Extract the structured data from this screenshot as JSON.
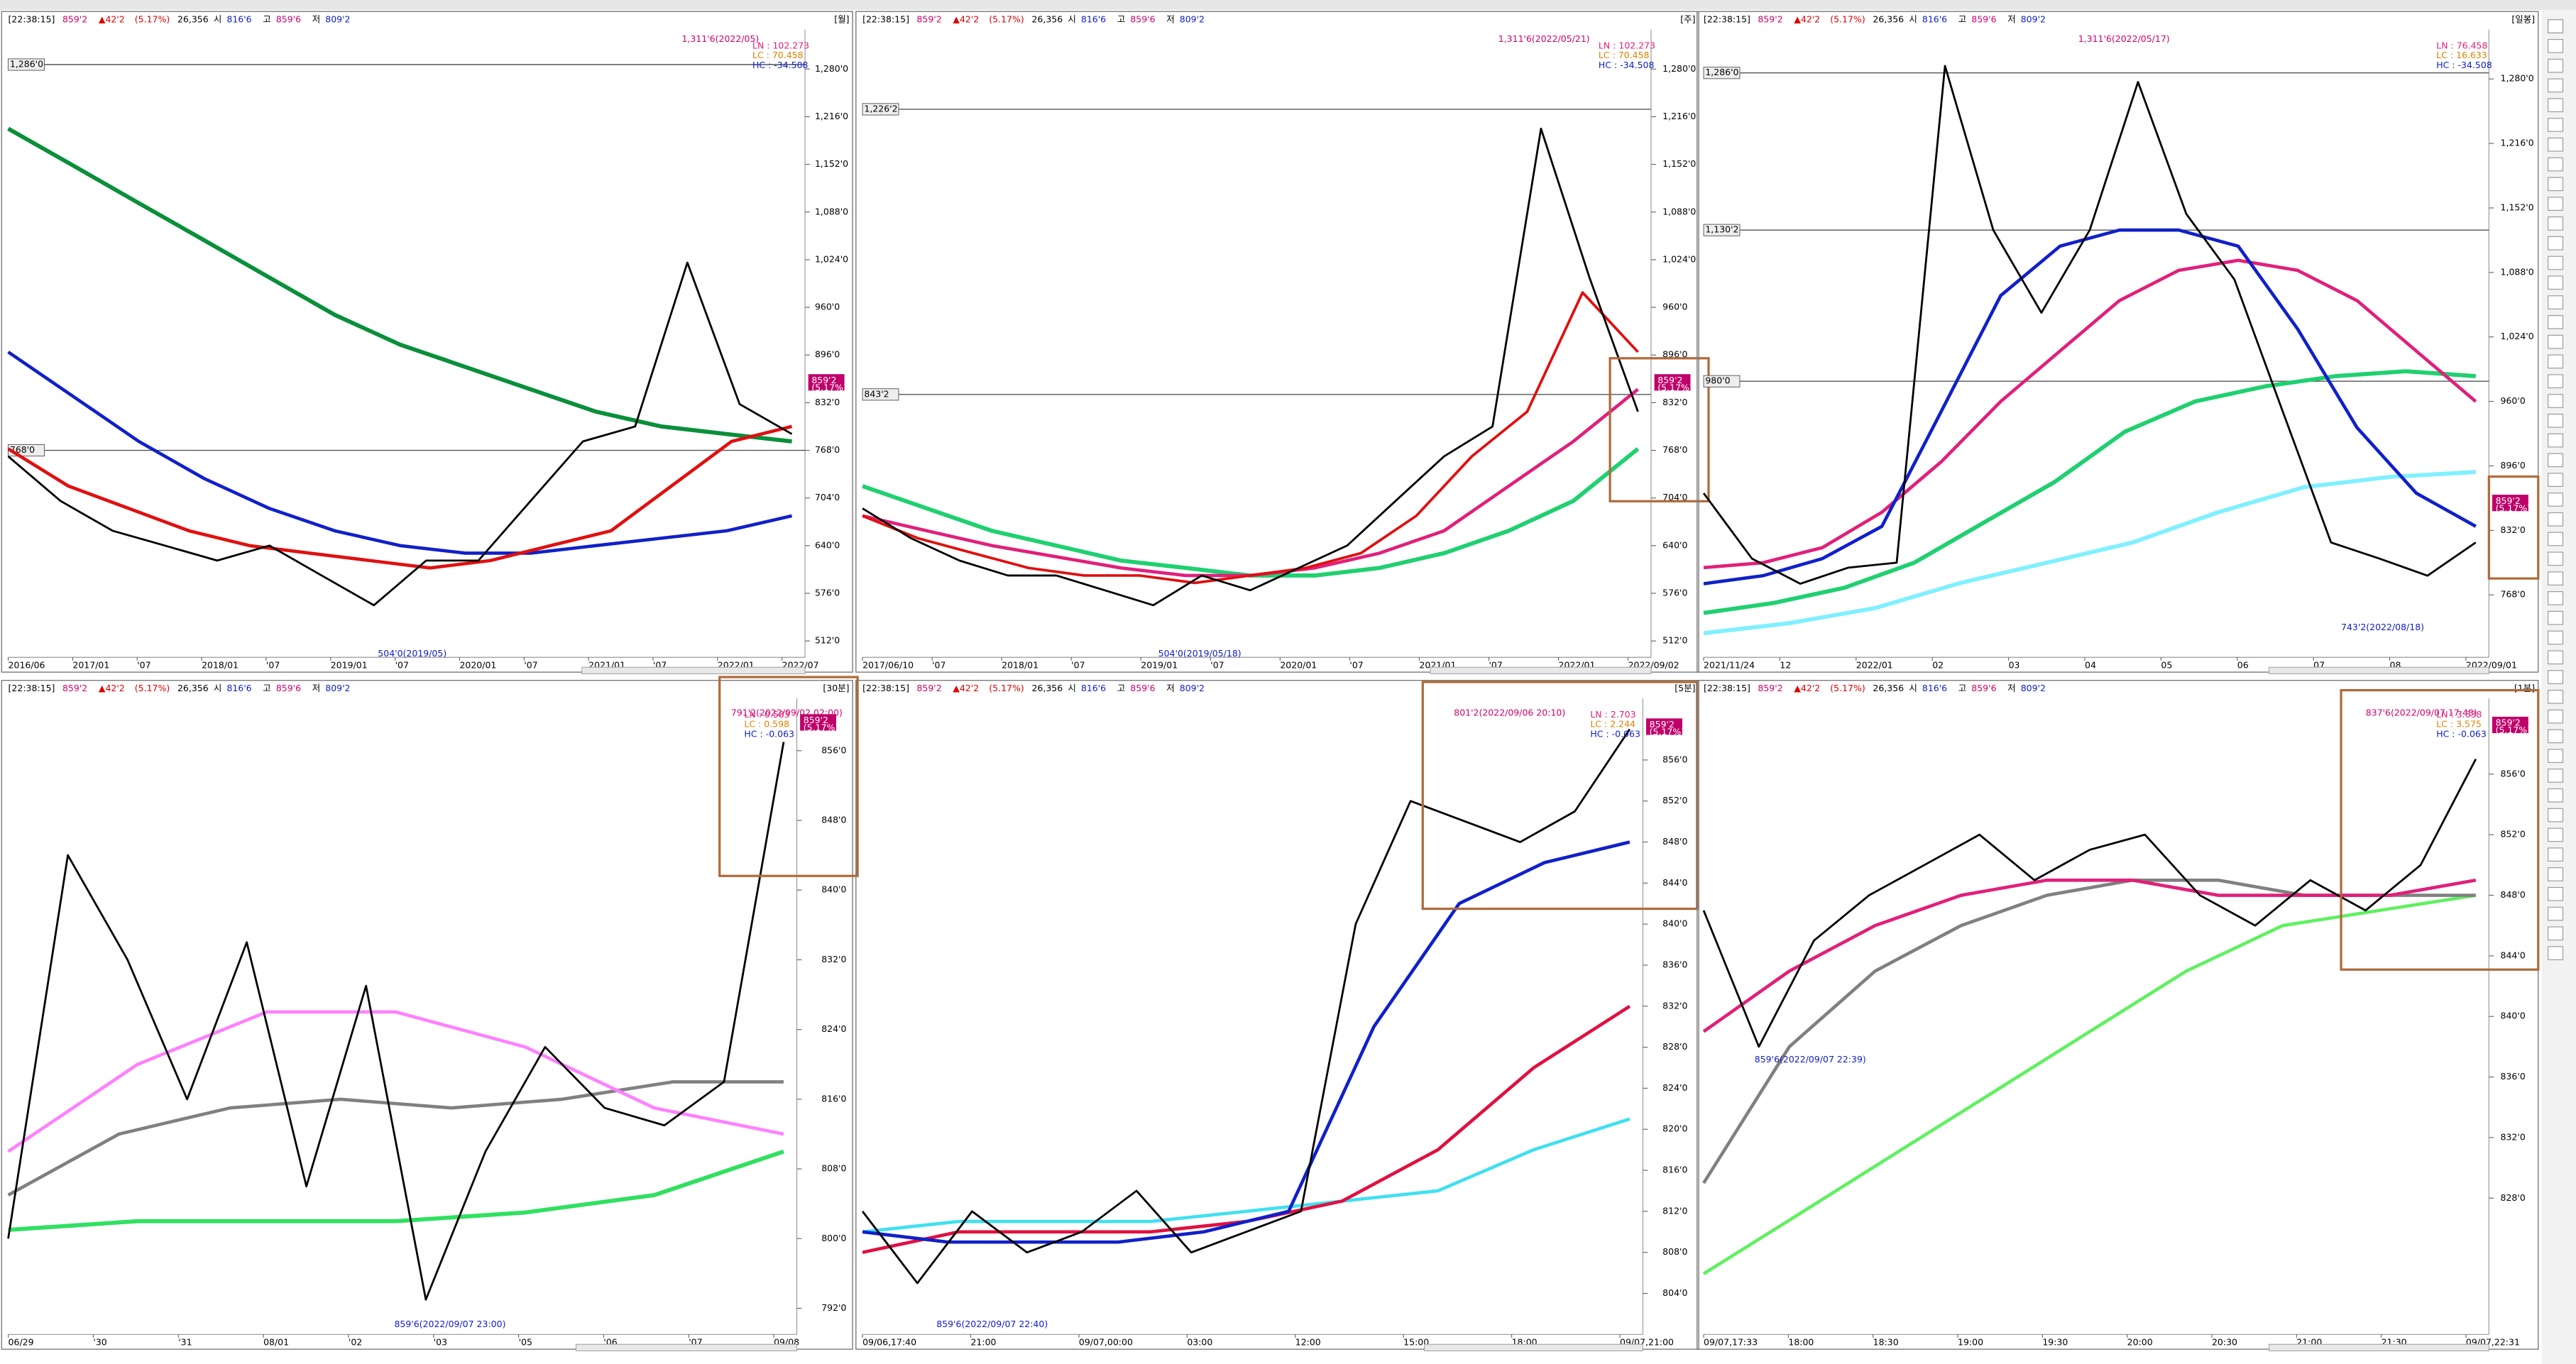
{
  "quote": {
    "time": "[22:38:15]",
    "price": "859'2",
    "change": "▲42'2",
    "pct": "(5.17%)",
    "volume": "26,356",
    "open_label": "시",
    "open": "816'6",
    "high_label": "고",
    "high": "859'6",
    "low_label": "저",
    "low": "809'2"
  },
  "panels": [
    {
      "period": "[월]",
      "ylim": [
        490,
        1333
      ],
      "yticks": [
        {
          "value": 1280,
          "label": "1,280'0"
        },
        {
          "value": 1216,
          "label": "1,216'0"
        },
        {
          "value": 1152,
          "label": "1,152'0"
        },
        {
          "value": 1088,
          "label": "1,088'0"
        },
        {
          "value": 1024,
          "label": "1,024'0"
        },
        {
          "value": 960,
          "label": "960'0"
        },
        {
          "value": 896,
          "label": "896'0"
        },
        {
          "value": 832,
          "label": "832'0"
        },
        {
          "value": 768,
          "label": "768'0"
        },
        {
          "value": 704,
          "label": "704'0"
        },
        {
          "value": 640,
          "label": "640'0"
        },
        {
          "value": 576,
          "label": "576'0"
        },
        {
          "value": 512,
          "label": "512'0"
        }
      ],
      "hlines": [
        {
          "value": 1286,
          "label": "1,286'0"
        },
        {
          "value": 768,
          "label": "768'0"
        }
      ],
      "xlabels": [
        "2016/06",
        "2017/01",
        "'07",
        "2018/01",
        "'07",
        "2019/01",
        "'07",
        "2020/01",
        "'07",
        "2021/01",
        "'07",
        "2022/01",
        "2022/07"
      ],
      "notes": [
        "1,311'6(2022/05)",
        "504'0(2019/05)"
      ],
      "legend": [
        "LN : 102.273",
        "LC : 70.458",
        "HC : -34.508"
      ],
      "series": [
        {
          "color": "#0a8f3a",
          "width": 2.5,
          "values": [
            1200,
            1150,
            1100,
            1050,
            1000,
            950,
            910,
            880,
            850,
            820,
            800,
            790,
            780
          ]
        },
        {
          "color": "#1020c8",
          "width": 2,
          "values": [
            900,
            840,
            780,
            730,
            690,
            660,
            640,
            630,
            630,
            640,
            650,
            660,
            680
          ]
        },
        {
          "color": "#e01010",
          "width": 2,
          "values": [
            770,
            720,
            690,
            660,
            640,
            630,
            620,
            610,
            620,
            640,
            660,
            720,
            780,
            800
          ]
        },
        {
          "color": "#000000",
          "width": 1.2,
          "values": [
            760,
            700,
            660,
            640,
            620,
            640,
            600,
            560,
            620,
            620,
            700,
            780,
            800,
            1020,
            830,
            790
          ]
        }
      ]
    },
    {
      "period": "[주]",
      "ylim": [
        490,
        1333
      ],
      "yticks": [
        {
          "value": 1280,
          "label": "1,280'0"
        },
        {
          "value": 1216,
          "label": "1,216'0"
        },
        {
          "value": 1152,
          "label": "1,152'0"
        },
        {
          "value": 1088,
          "label": "1,088'0"
        },
        {
          "value": 1024,
          "label": "1,024'0"
        },
        {
          "value": 960,
          "label": "960'0"
        },
        {
          "value": 896,
          "label": "896'0"
        },
        {
          "value": 832,
          "label": "832'0"
        },
        {
          "value": 768,
          "label": "768'0"
        },
        {
          "value": 704,
          "label": "704'0"
        },
        {
          "value": 640,
          "label": "640'0"
        },
        {
          "value": 576,
          "label": "576'0"
        },
        {
          "value": 512,
          "label": "512'0"
        }
      ],
      "hlines": [
        {
          "value": 1226,
          "label": "1,226'2"
        },
        {
          "value": 843,
          "label": "843'2"
        }
      ],
      "xlabels": [
        "2017/06/10",
        "'07",
        "2018/01",
        "'07",
        "2019/01",
        "'07",
        "2020/01",
        "'07",
        "2021/01",
        "'07",
        "2022/01",
        "2022/09/02"
      ],
      "notes": [
        "1,311'6(2022/05/21)",
        "504'0(2019/05/18)"
      ],
      "legend": [
        "LN : 102.273",
        "LC : 70.458",
        "HC : -34.508"
      ],
      "series": [
        {
          "color": "#20d070",
          "width": 2.5,
          "values": [
            720,
            690,
            660,
            640,
            620,
            610,
            600,
            600,
            610,
            630,
            660,
            700,
            770
          ]
        },
        {
          "color": "#e0207a",
          "width": 2,
          "values": [
            680,
            660,
            640,
            625,
            610,
            600,
            600,
            610,
            630,
            660,
            720,
            780,
            850
          ]
        },
        {
          "color": "#e01010",
          "width": 1.6,
          "values": [
            680,
            650,
            630,
            610,
            600,
            600,
            590,
            600,
            610,
            630,
            680,
            760,
            820,
            980,
            900
          ]
        },
        {
          "color": "#000000",
          "width": 1.2,
          "values": [
            690,
            650,
            620,
            600,
            600,
            580,
            560,
            600,
            580,
            610,
            640,
            700,
            760,
            800,
            1200,
            1000,
            820
          ]
        }
      ]
    },
    {
      "period": "[일봉]",
      "ylim": [
        706,
        1329
      ],
      "yticks": [
        {
          "value": 1280,
          "label": "1,280'0"
        },
        {
          "value": 1216,
          "label": "1,216'0"
        },
        {
          "value": 1152,
          "label": "1,152'0"
        },
        {
          "value": 1088,
          "label": "1,088'0"
        },
        {
          "value": 1024,
          "label": "1,024'0"
        },
        {
          "value": 960,
          "label": "960'0"
        },
        {
          "value": 896,
          "label": "896'0"
        },
        {
          "value": 832,
          "label": "832'0"
        },
        {
          "value": 768,
          "label": "768'0"
        }
      ],
      "hlines": [
        {
          "value": 1286,
          "label": "1,286'0"
        },
        {
          "value": 1130,
          "label": "1,130'2"
        },
        {
          "value": 980,
          "label": "980'0"
        }
      ],
      "xlabels": [
        "2021/11/24",
        "12",
        "2022/01",
        "02",
        "03",
        "04",
        "05",
        "06",
        "07",
        "08",
        "2022/09/01"
      ],
      "notes": [
        "1,311'6(2022/05/17)",
        "743'2(2022/08/18)"
      ],
      "legend": [
        "LN : 76.458",
        "LC : 16.633",
        "HC : -34.508"
      ],
      "series": [
        {
          "color": "#80f0ff",
          "width": 2.5,
          "values": [
            730,
            740,
            755,
            780,
            800,
            820,
            850,
            875,
            885,
            890
          ]
        },
        {
          "color": "#20d070",
          "width": 2.5,
          "values": [
            750,
            760,
            775,
            800,
            840,
            880,
            930,
            960,
            975,
            985,
            990,
            985
          ]
        },
        {
          "color": "#e0207a",
          "width": 2,
          "values": [
            795,
            800,
            815,
            850,
            900,
            960,
            1010,
            1060,
            1090,
            1100,
            1090,
            1060,
            1010,
            960
          ]
        },
        {
          "color": "#1020c8",
          "width": 2,
          "values": [
            779,
            787,
            804,
            836,
            950,
            1065,
            1114,
            1130,
            1130,
            1114,
            1032,
            934,
            869,
            836
          ]
        },
        {
          "color": "#000000",
          "width": 1.2,
          "values": [
            869,
            804,
            779,
            795,
            800,
            1293,
            1130,
            1048,
            1130,
            1277,
            1146,
            1081,
            950,
            820,
            804,
            787,
            820
          ]
        }
      ]
    },
    {
      "period": "[30분]",
      "ylim": [
        789,
        862
      ],
      "yticks": [
        {
          "value": 856,
          "label": "856'0"
        },
        {
          "value": 848,
          "label": "848'0"
        },
        {
          "value": 840,
          "label": "840'0"
        },
        {
          "value": 832,
          "label": "832'0"
        },
        {
          "value": 824,
          "label": "824'0"
        },
        {
          "value": 816,
          "label": "816'0"
        },
        {
          "value": 808,
          "label": "808'0"
        },
        {
          "value": 800,
          "label": "800'0"
        },
        {
          "value": 792,
          "label": "792'0"
        }
      ],
      "hlines": [],
      "xlabels": [
        "06/29",
        "'30",
        "'31",
        "08/01",
        "'02",
        "'03",
        "'05",
        "'06",
        "'07",
        "09/08"
      ],
      "notes": [
        "791'2(2022/09/02 02:00)",
        "859'6(2022/09/07 23:00)"
      ],
      "legend": [
        "LN : 0.583",
        "LC : 0.598",
        "HC : -0.063"
      ],
      "series": [
        {
          "color": "#30e060",
          "width": 2.5,
          "values": [
            801,
            802,
            802,
            802,
            803,
            805,
            810
          ]
        },
        {
          "color": "#808080",
          "width": 2,
          "values": [
            805,
            812,
            815,
            816,
            815,
            816,
            818,
            818
          ]
        },
        {
          "color": "#ff80ff",
          "width": 2,
          "values": [
            810,
            820,
            826,
            826,
            822,
            815,
            812
          ]
        },
        {
          "color": "#000000",
          "width": 1.2,
          "values": [
            800,
            844,
            832,
            816,
            834,
            806,
            829,
            793,
            810,
            822,
            815,
            813,
            818,
            857
          ]
        }
      ]
    },
    {
      "period": "[5분]",
      "ylim": [
        800,
        862
      ],
      "yticks": [
        {
          "value": 856,
          "label": "856'0"
        },
        {
          "value": 852,
          "label": "852'0"
        },
        {
          "value": 848,
          "label": "848'0"
        },
        {
          "value": 844,
          "label": "844'0"
        },
        {
          "value": 840,
          "label": "840'0"
        },
        {
          "value": 836,
          "label": "836'0"
        },
        {
          "value": 832,
          "label": "832'0"
        },
        {
          "value": 828,
          "label": "828'0"
        },
        {
          "value": 824,
          "label": "824'0"
        },
        {
          "value": 820,
          "label": "820'0"
        },
        {
          "value": 816,
          "label": "816'0"
        },
        {
          "value": 812,
          "label": "812'0"
        },
        {
          "value": 808,
          "label": "808'0"
        },
        {
          "value": 804,
          "label": "804'0"
        }
      ],
      "hlines": [],
      "xlabels": [
        "09/06,17:40",
        "21:00",
        "09/07,00:00",
        "03:00",
        "12:00",
        "15:00",
        "18:00",
        "09/07,21:00"
      ],
      "notes": [
        "801'2(2022/09/06 20:10)",
        "859'6(2022/09/07 22:40)"
      ],
      "legend": [
        "LN : 2.703",
        "LC : 2.244",
        "HC : -0.063"
      ],
      "series": [
        {
          "color": "#40e0f0",
          "width": 2,
          "values": [
            810,
            811,
            811,
            811,
            812,
            813,
            814,
            818,
            821
          ]
        },
        {
          "color": "#e01040",
          "width": 2,
          "values": [
            808,
            810,
            810,
            810,
            811,
            813,
            818,
            826,
            832
          ]
        },
        {
          "color": "#1020c8",
          "width": 2,
          "values": [
            810,
            809,
            809,
            809,
            810,
            812,
            830,
            842,
            846,
            848
          ]
        },
        {
          "color": "#000000",
          "width": 1.2,
          "values": [
            812,
            805,
            812,
            808,
            810,
            814,
            808,
            810,
            812,
            840,
            852,
            850,
            848,
            851,
            859
          ]
        }
      ]
    },
    {
      "period": "[1분]",
      "ylim": [
        819,
        861
      ],
      "yticks": [
        {
          "value": 856,
          "label": "856'0"
        },
        {
          "value": 852,
          "label": "852'0"
        },
        {
          "value": 848,
          "label": "848'0"
        },
        {
          "value": 844,
          "label": "844'0"
        },
        {
          "value": 840,
          "label": "840'0"
        },
        {
          "value": 836,
          "label": "836'0"
        },
        {
          "value": 832,
          "label": "832'0"
        },
        {
          "value": 828,
          "label": "828'0"
        }
      ],
      "hlines": [],
      "xlabels": [
        "09/07,17:33",
        "18:00",
        "18:30",
        "19:00",
        "19:30",
        "20:00",
        "20:30",
        "21:00",
        "21:30",
        "09/07,22:31"
      ],
      "notes": [
        "837'6(2022/09/07 17:48)",
        "859'6(2022/09/07 22:39)"
      ],
      "legend": [
        "LN : 3.638",
        "LC : 3.575",
        "HC : -0.063"
      ],
      "series": [
        {
          "color": "#60f060",
          "width": 2,
          "values": [
            823,
            827,
            831,
            835,
            839,
            843,
            846,
            847,
            848
          ]
        },
        {
          "color": "#808080",
          "width": 2,
          "values": [
            829,
            838,
            843,
            846,
            848,
            849,
            849,
            848,
            848,
            848
          ]
        },
        {
          "color": "#e0207a",
          "width": 2,
          "values": [
            839,
            843,
            846,
            848,
            849,
            849,
            848,
            848,
            848,
            849
          ]
        },
        {
          "color": "#000000",
          "width": 1.2,
          "values": [
            847,
            838,
            845,
            848,
            850,
            852,
            849,
            851,
            852,
            848,
            846,
            849,
            847,
            850,
            857
          ]
        }
      ]
    }
  ]
}
